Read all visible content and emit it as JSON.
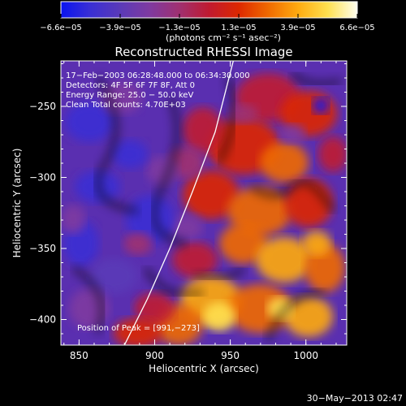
{
  "chart_data": {
    "type": "heatmap",
    "title": "Reconstructed RHESSI Image",
    "xlabel": "Heliocentric X (arcsec)",
    "ylabel": "Heliocentric Y (arcsec)",
    "xlim": [
      838,
      1027
    ],
    "ylim": [
      -418,
      -218
    ],
    "xticks": [
      {
        "v": 850,
        "label": "850"
      },
      {
        "v": 900,
        "label": "900"
      },
      {
        "v": 950,
        "label": "950"
      },
      {
        "v": 1000,
        "label": "1000"
      }
    ],
    "yticks": [
      {
        "v": -250,
        "label": "−250"
      },
      {
        "v": -300,
        "label": "−300"
      },
      {
        "v": -350,
        "label": "−350"
      },
      {
        "v": -400,
        "label": "−400"
      }
    ],
    "colorbar": {
      "min": -6.6e-05,
      "max": 6.6e-05,
      "tick_labels": [
        "−6.6e−05",
        "−3.9e−05",
        "−1.3e−05",
        "1.3e−05",
        "3.9e−05",
        "6.6e−05"
      ],
      "unit_label": "(photons cm⁻² s⁻¹ asec⁻²)",
      "colors": [
        "#0a14f0",
        "#3a2fd4",
        "#5a3ab8",
        "#7f3aa0",
        "#a03070",
        "#c01a30",
        "#dd2800",
        "#f06a00",
        "#ffab10",
        "#ffe050",
        "#fffff0"
      ]
    },
    "annotations": [
      "17−Feb−2003 06:28:48.000 to 06:34:30.000",
      "Detectors: 4F 5F 6F 7F 8F, Att 0",
      "Energy Range: 25.0 − 50.0 keV",
      "Clean     Total counts: 4.70E+03"
    ],
    "peak_label": "Position of Peak = [991,−273]",
    "limb_curve": [
      [
        880,
        -418
      ],
      [
        895,
        -386
      ],
      [
        910,
        -350
      ],
      [
        925,
        -310
      ],
      [
        940,
        -268
      ],
      [
        952,
        -218
      ]
    ],
    "grid": false,
    "colorbar_location": "top"
  },
  "footer": {
    "timestamp": "30−May−2013 02:47"
  }
}
